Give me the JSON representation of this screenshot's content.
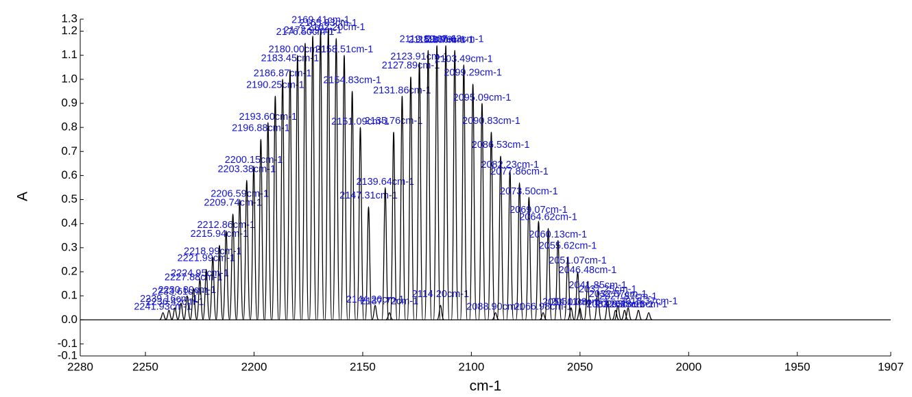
{
  "chart_data": {
    "type": "line",
    "xlabel": "cm-1",
    "ylabel": "A",
    "xlim": [
      2280,
      1907
    ],
    "xticks": [
      2280,
      2250,
      2200,
      2150,
      2100,
      2050,
      2000,
      1950,
      1907
    ],
    "ylim": [
      -0.15,
      1.25
    ],
    "yticks": [
      {
        "value": -0.15,
        "label": "-0.1"
      },
      -0.1,
      {
        "value": 0,
        "label": "0.0"
      },
      0.1,
      0.2,
      0.3,
      0.4,
      0.5,
      0.6,
      0.7,
      0.8,
      0.9,
      {
        "value": 1,
        "label": "1.0"
      },
      1.1,
      1.2,
      {
        "value": 1.25,
        "label": "1.3"
      }
    ],
    "color": "#000000",
    "label_color": "#1414d2",
    "x": [
      2241.93,
      2239.16,
      2236.42,
      2233.61,
      2230.8,
      2227.88,
      2224.95,
      2221.99,
      2218.99,
      2215.94,
      2212.86,
      2209.74,
      2206.59,
      2203.38,
      2200.15,
      2196.88,
      2193.6,
      2190.25,
      2186.87,
      2183.45,
      2180.0,
      2176.5,
      2172.99,
      2169.41,
      2165.83,
      2162.2,
      2158.51,
      2154.83,
      2151.09,
      2147.31,
      2144.26,
      2137.72,
      2139.64,
      2135.76,
      2131.86,
      2127.89,
      2123.91,
      2119.89,
      2115.86,
      2114.2,
      2111.76,
      2107.63,
      2103.49,
      2099.29,
      2095.09,
      2090.83,
      2088.9,
      2086.53,
      2082.23,
      2077.86,
      2073.5,
      2069.07,
      2066.98,
      2064.62,
      2060.13,
      2055.62,
      2054.11,
      2051.07,
      2050.08,
      2046.48,
      2041.85,
      2037.25,
      2033.65,
      2032.57,
      2029.48,
      2027.87,
      2023.13,
      2018.37
    ],
    "values": [
      0.03,
      0.04,
      0.05,
      0.07,
      0.1,
      0.13,
      0.17,
      0.21,
      0.26,
      0.31,
      0.37,
      0.44,
      0.5,
      0.58,
      0.64,
      0.75,
      0.82,
      0.93,
      1.0,
      1.04,
      1.1,
      1.15,
      1.18,
      1.2,
      1.21,
      1.17,
      1.1,
      0.95,
      0.8,
      0.47,
      0.06,
      0.03,
      0.55,
      0.78,
      0.93,
      1.01,
      1.07,
      1.12,
      1.14,
      0.06,
      1.14,
      1.12,
      1.06,
      0.98,
      0.9,
      0.78,
      0.03,
      0.68,
      0.62,
      0.57,
      0.51,
      0.41,
      0.03,
      0.38,
      0.33,
      0.26,
      0.05,
      0.2,
      0.05,
      0.16,
      0.12,
      0.08,
      0.04,
      0.06,
      0.04,
      0.05,
      0.04,
      0.03
    ],
    "labels": [
      "2241.93cm-1",
      "2239.16cm-1",
      "2236.42cm-1",
      "2233.61cm-1",
      "2230.80cm-1",
      "2227.88cm-1",
      "2224.95cm-1",
      "2221.99cm-1",
      "2218.99cm-1",
      "2215.94cm-1",
      "2212.86cm-1",
      "2209.74cm-1",
      "2206.59cm-1",
      "2203.38cm-1",
      "2200.15cm-1",
      "2196.88cm-1",
      "2193.60cm-1",
      "2190.25cm-1",
      "2186.87cm-1",
      "2183.45cm-1",
      "2180.00cm-1",
      "2176.50cm-1",
      "2172.99cm-1",
      "2169.41cm-1",
      "2165.83cm-1",
      "2162.20cm-1",
      "2158.51cm-1",
      "2154.83cm-1",
      "2151.09cm-1",
      "2147.31cm-1",
      "2144.26cm-1",
      "2137.72cm-1",
      "2139.64cm-1",
      "2135.76cm-1",
      "2131.86cm-1",
      "2127.89cm-1",
      "2123.91cm-1",
      "2119.89cm-1",
      "2115.86cm-1",
      "2114.20cm-1",
      "2111.76cm-1",
      "2107.63cm-1",
      "2103.49cm-1",
      "2099.29cm-1",
      "2095.09cm-1",
      "2090.83cm-1",
      "2088.90cm-1",
      "2086.53cm-1",
      "2082.23cm-1",
      "2077.86cm-1",
      "2073.50cm-1",
      "2069.07cm-1",
      "2066.98cm-1",
      "2064.62cm-1",
      "2060.13cm-1",
      "2055.62cm-1",
      "2054.11cm-1",
      "2051.07cm-1",
      "2050.08cm-1",
      "2046.48cm-1",
      "2041.85cm-1",
      "2037.25cm-1",
      "2033.65cm-1",
      "2032.57cm-1",
      "2029.48cm-1",
      "2027.87cm-1",
      "2023.13cm-1",
      "2018.37cm-1"
    ]
  }
}
